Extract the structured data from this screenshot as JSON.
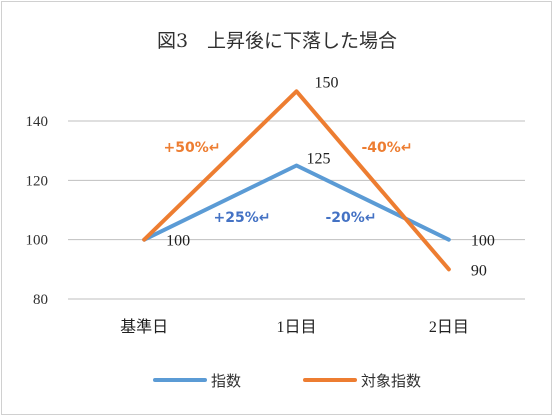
{
  "chart_data": {
    "type": "line",
    "title": "図3　上昇後に下落した場合",
    "categories": [
      "基準日",
      "1日目",
      "2日目"
    ],
    "ylim": [
      80,
      150
    ],
    "yticks": [
      80,
      100,
      120,
      140
    ],
    "grid": true,
    "legend_position": "bottom",
    "series": [
      {
        "name": "指数",
        "values": [
          100,
          125,
          100
        ],
        "color": "#5B9BD5",
        "point_labels": [
          "100",
          "125",
          "100"
        ]
      },
      {
        "name": "対象指数",
        "values": [
          100,
          150,
          90
        ],
        "color": "#ED7D31",
        "point_labels": [
          "",
          "150",
          "90"
        ]
      }
    ],
    "annotations": [
      {
        "text": "+50%↵",
        "color": "#ED7D31"
      },
      {
        "text": "-40%↵",
        "color": "#ED7D31"
      },
      {
        "text": "+25%↵",
        "color": "#4472C4"
      },
      {
        "text": "-20%↵",
        "color": "#4472C4"
      }
    ]
  }
}
